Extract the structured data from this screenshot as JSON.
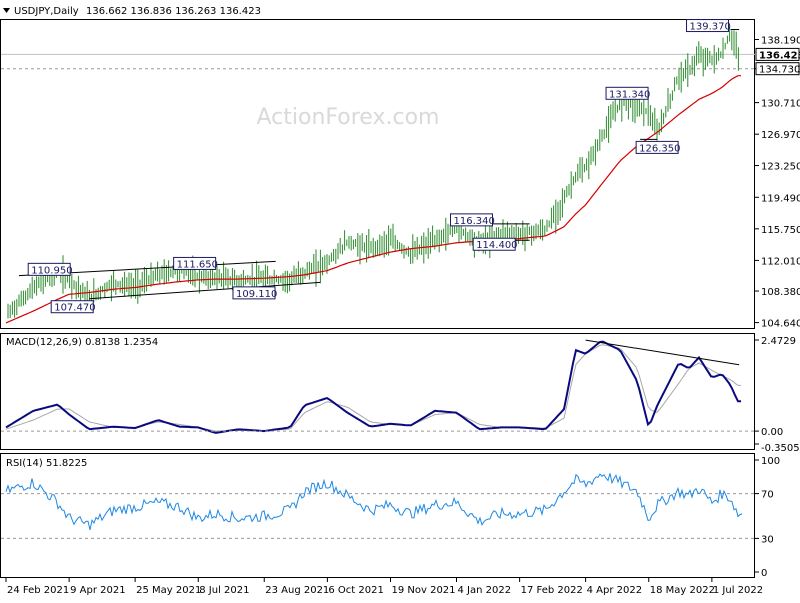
{
  "header": {
    "symbol": "USDJPY,Daily",
    "ohlc": "136.662 136.836 136.263 136.423"
  },
  "watermark": "ActionForex.com",
  "colors": {
    "candle": "#2b8a2b",
    "ma": "#d40000",
    "macd": "#0a0a80",
    "signal": "#a8a8a8",
    "rsi": "#1e88e5",
    "trendline": "#000000",
    "label_border": "#1a1a60"
  },
  "price_axis": {
    "ticks": [
      "138.190",
      "134.730",
      "130.710",
      "126.970",
      "123.250",
      "119.490",
      "115.750",
      "112.010",
      "108.380",
      "104.640"
    ],
    "current_price": "136.423",
    "dotted_level": "134.730"
  },
  "date_axis": [
    "24 Feb 2021",
    "9 Apr 2021",
    "25 May 2021",
    "8 Jul 2021",
    "23 Aug 2021",
    "6 Oct 2021",
    "19 Nov 2021",
    "4 Jan 2022",
    "17 Feb 2022",
    "4 Apr 2022",
    "18 May 2022",
    "1 Jul 2022"
  ],
  "price_labels": [
    "110.950",
    "111.650",
    "107.470",
    "109.110",
    "116.340",
    "114.400",
    "131.340",
    "126.350",
    "139.370"
  ],
  "macd_panel": {
    "title": "MACD(12,26,9) 0.8138 1.2354",
    "ticks": [
      "2.4729",
      "0.00",
      "-0.3505"
    ]
  },
  "rsi_panel": {
    "title": "RSI(14) 51.8225",
    "ticks": [
      "100",
      "70",
      "30",
      "0"
    ]
  },
  "chart_data": [
    {
      "type": "candlestick",
      "title": "USDJPY,Daily",
      "ylim": [
        104.0,
        140.5
      ],
      "x": [
        "2021-02-24",
        "2021-03-15",
        "2021-04-01",
        "2021-04-09",
        "2021-04-23",
        "2021-05-10",
        "2021-05-25",
        "2021-06-10",
        "2021-06-25",
        "2021-07-08",
        "2021-07-20",
        "2021-08-05",
        "2021-08-23",
        "2021-09-10",
        "2021-09-20",
        "2021-10-06",
        "2021-10-20",
        "2021-11-05",
        "2021-11-19",
        "2021-12-03",
        "2021-12-20",
        "2022-01-04",
        "2022-01-20",
        "2022-02-04",
        "2022-02-17",
        "2022-03-07",
        "2022-03-20",
        "2022-03-28",
        "2022-04-04",
        "2022-04-15",
        "2022-04-28",
        "2022-05-10",
        "2022-05-18",
        "2022-05-24",
        "2022-06-08",
        "2022-06-15",
        "2022-06-22",
        "2022-07-01",
        "2022-07-08",
        "2022-07-14",
        "2022-07-19"
      ],
      "close": [
        105.5,
        108.7,
        110.8,
        109.7,
        107.6,
        109.3,
        108.9,
        110.3,
        110.9,
        110.1,
        110.0,
        109.6,
        109.8,
        109.7,
        110.6,
        111.8,
        114.2,
        113.4,
        114.4,
        112.8,
        114.3,
        115.9,
        114.1,
        115.2,
        115.1,
        115.6,
        119.3,
        122.0,
        122.9,
        126.5,
        130.8,
        130.3,
        129.6,
        127.0,
        133.9,
        134.5,
        136.2,
        135.8,
        136.4,
        139.0,
        136.4
      ],
      "ma_series": {
        "values": [
          104.6,
          106.0,
          107.4,
          108.0,
          108.2,
          108.6,
          108.8,
          109.2,
          109.5,
          109.7,
          109.8,
          109.8,
          109.9,
          110.1,
          110.3,
          110.8,
          111.7,
          112.4,
          113.0,
          113.4,
          113.7,
          114.1,
          114.3,
          114.5,
          114.6,
          114.9,
          116.0,
          117.5,
          118.6,
          121.0,
          123.8,
          125.6,
          126.5,
          127.2,
          129.3,
          130.2,
          131.1,
          131.8,
          132.5,
          133.4,
          133.9
        ]
      },
      "annotations": [
        {
          "label": "110.950",
          "date": "2021-03-31",
          "price": 110.95
        },
        {
          "label": "111.650",
          "date": "2021-07-02",
          "price": 111.65
        },
        {
          "label": "107.470",
          "date": "2021-04-23",
          "price": 107.47
        },
        {
          "label": "109.110",
          "date": "2021-08-04",
          "price": 109.11
        },
        {
          "label": "116.340",
          "date": "2022-01-04",
          "price": 116.34
        },
        {
          "label": "114.400",
          "date": "2022-01-24",
          "price": 114.4
        },
        {
          "label": "131.340",
          "date": "2022-04-28",
          "price": 131.34
        },
        {
          "label": "126.350",
          "date": "2022-05-12",
          "price": 126.35
        },
        {
          "label": "139.370",
          "date": "2022-07-14",
          "price": 139.37
        }
      ],
      "current_price": 136.423,
      "horizontal_level": 134.73
    },
    {
      "type": "line",
      "title": "MACD(12,26,9) 0.8138 1.2354",
      "ylim": [
        -0.3505,
        2.4729
      ],
      "series": [
        {
          "values": [
            0.1,
            0.55,
            0.72,
            0.45,
            0.05,
            0.12,
            0.08,
            0.3,
            0.12,
            0.1,
            -0.05,
            0.05,
            0.0,
            0.1,
            0.7,
            0.9,
            0.5,
            0.12,
            0.2,
            0.15,
            0.55,
            0.5,
            0.05,
            0.1,
            0.1,
            0.05,
            0.6,
            2.2,
            2.1,
            2.45,
            2.2,
            1.35,
            0.1,
            0.7,
            1.85,
            1.7,
            2.0,
            1.45,
            1.55,
            1.25,
            0.81
          ]
        },
        {
          "values": [
            0.05,
            0.3,
            0.6,
            0.6,
            0.25,
            0.1,
            0.1,
            0.25,
            0.18,
            0.1,
            0.0,
            0.02,
            0.02,
            0.05,
            0.5,
            0.8,
            0.65,
            0.25,
            0.18,
            0.15,
            0.45,
            0.5,
            0.18,
            0.1,
            0.1,
            0.08,
            0.35,
            1.8,
            2.1,
            2.35,
            2.25,
            1.7,
            0.6,
            0.5,
            1.3,
            1.7,
            1.85,
            1.65,
            1.5,
            1.4,
            1.24
          ]
        }
      ],
      "trendline": {
        "from": {
          "date": "2022-04-04",
          "value": 2.47
        },
        "to": {
          "date": "2022-07-20",
          "value": 1.8
        }
      }
    },
    {
      "type": "line",
      "title": "RSI(14) 51.8225",
      "ylim": [
        0,
        100
      ],
      "levels": [
        70,
        30
      ],
      "series": [
        {
          "values": [
            72,
            80,
            62,
            48,
            42,
            55,
            58,
            62,
            58,
            48,
            52,
            48,
            50,
            55,
            72,
            80,
            68,
            55,
            60,
            52,
            60,
            62,
            45,
            52,
            52,
            55,
            72,
            82,
            78,
            88,
            80,
            72,
            48,
            60,
            72,
            68,
            75,
            62,
            70,
            66,
            51.8
          ]
        }
      ]
    }
  ]
}
